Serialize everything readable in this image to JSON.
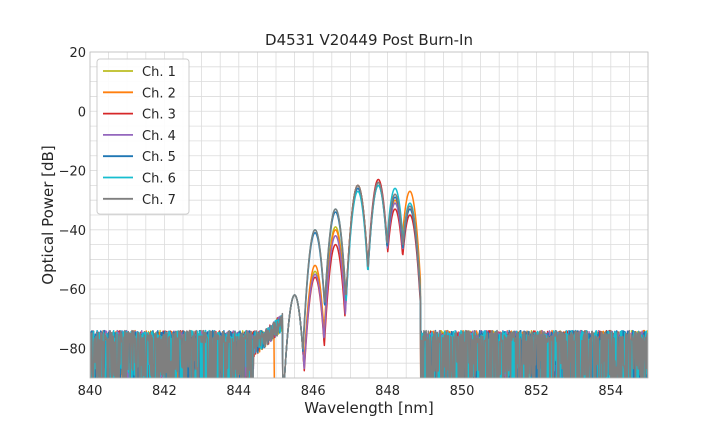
{
  "chart_data": {
    "type": "line",
    "title": "D4531 V20449 Post Burn-In",
    "xlabel": "Wavelength [nm]",
    "ylabel": "Optical Power [dB]",
    "xlim": [
      840,
      855
    ],
    "ylim": [
      -90,
      20
    ],
    "xticks": [
      840,
      842,
      844,
      846,
      848,
      850,
      852,
      854
    ],
    "yticks": [
      20,
      0,
      -20,
      -40,
      -60,
      -80
    ],
    "grid": true,
    "legend_position": "upper-left",
    "noise_floor_db": -80,
    "series": [
      {
        "name": "Ch. 1",
        "color": "#bcbd22",
        "peaks": [
          [
            845.5,
            -62
          ],
          [
            846.05,
            -54
          ],
          [
            846.6,
            -39
          ],
          [
            847.2,
            -25
          ],
          [
            847.75,
            -24
          ],
          [
            848.2,
            -31
          ],
          [
            848.6,
            -33
          ]
        ]
      },
      {
        "name": "Ch. 2",
        "color": "#ff7f0e",
        "peaks": [
          [
            845.5,
            -62
          ],
          [
            846.05,
            -52
          ],
          [
            846.6,
            -40
          ],
          [
            847.2,
            -25
          ],
          [
            847.75,
            -24
          ],
          [
            848.2,
            -30
          ],
          [
            848.6,
            -27
          ]
        ]
      },
      {
        "name": "Ch. 3",
        "color": "#d62728",
        "peaks": [
          [
            845.5,
            -62
          ],
          [
            846.05,
            -56
          ],
          [
            846.6,
            -45
          ],
          [
            847.2,
            -25
          ],
          [
            847.75,
            -23
          ],
          [
            848.2,
            -33
          ],
          [
            848.6,
            -35
          ]
        ]
      },
      {
        "name": "Ch. 4",
        "color": "#9467bd",
        "peaks": [
          [
            845.5,
            -62
          ],
          [
            846.05,
            -55
          ],
          [
            846.6,
            -42
          ],
          [
            847.2,
            -26
          ],
          [
            847.75,
            -24
          ],
          [
            848.2,
            -31
          ],
          [
            848.6,
            -33
          ]
        ]
      },
      {
        "name": "Ch. 5",
        "color": "#1f77b4",
        "peaks": [
          [
            845.5,
            -62
          ],
          [
            846.05,
            -41
          ],
          [
            846.6,
            -34
          ],
          [
            847.2,
            -26
          ],
          [
            847.75,
            -25
          ],
          [
            848.2,
            -29
          ],
          [
            848.6,
            -33
          ]
        ]
      },
      {
        "name": "Ch. 6",
        "color": "#17becf",
        "peaks": [
          [
            845.5,
            -62
          ],
          [
            846.05,
            -40
          ],
          [
            846.6,
            -33
          ],
          [
            847.2,
            -27
          ],
          [
            847.75,
            -25
          ],
          [
            848.2,
            -26
          ],
          [
            848.6,
            -31
          ]
        ]
      },
      {
        "name": "Ch. 7",
        "color": "#7f7f7f",
        "peaks": [
          [
            845.5,
            -62
          ],
          [
            846.05,
            -40
          ],
          [
            846.6,
            -33
          ],
          [
            847.2,
            -25
          ],
          [
            847.75,
            -24
          ],
          [
            848.2,
            -28
          ],
          [
            848.6,
            -32
          ]
        ]
      }
    ]
  }
}
